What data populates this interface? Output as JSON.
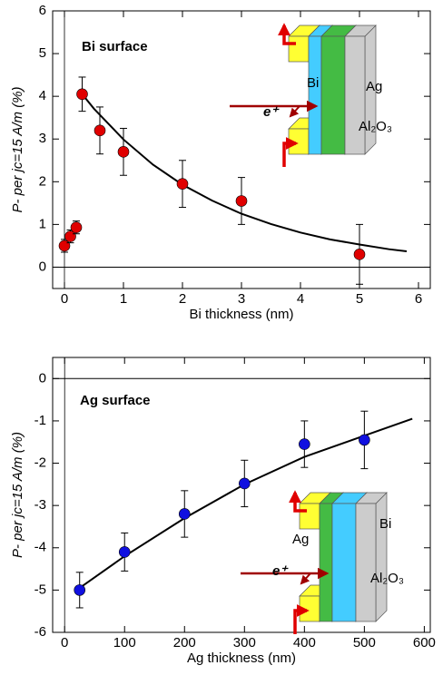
{
  "chart_data": [
    {
      "type": "scatter",
      "title": "Bi surface",
      "x_label": "Bi thickness  (nm)",
      "y_label": "P- per jc=15 A/m (%)",
      "annotations": [
        "Bi",
        "Ag",
        "Al₂O₃",
        "e⁺"
      ],
      "x": [
        0,
        0.1,
        0.2,
        0.3,
        0.6,
        1,
        2,
        3,
        5
      ],
      "series": [
        {
          "color": "#e00000",
          "values": [
            0.5,
            0.72,
            0.93,
            4.05,
            3.2,
            2.7,
            1.95,
            1.55,
            0.3
          ],
          "errors": [
            0.15,
            0.15,
            0.15,
            0.4,
            0.55,
            0.55,
            0.55,
            0.55,
            0.7
          ]
        }
      ],
      "fit": {
        "color": "#000000",
        "x": [
          0.3,
          0.5,
          1,
          1.5,
          2,
          2.5,
          3,
          3.5,
          4,
          4.5,
          5,
          5.5,
          5.8
        ],
        "values": [
          4.05,
          3.71,
          2.99,
          2.4,
          1.93,
          1.56,
          1.25,
          1.01,
          0.81,
          0.65,
          0.53,
          0.42,
          0.37
        ]
      },
      "xlim": [
        -0.2,
        6.2
      ],
      "ylim": [
        -0.5,
        6
      ],
      "xticks": [
        0,
        1,
        2,
        3,
        4,
        5,
        6
      ],
      "yticks": [
        0,
        1,
        2,
        3,
        4,
        5,
        6
      ]
    },
    {
      "type": "scatter",
      "title": "Ag surface",
      "x_label": "Ag thickness  (nm)",
      "y_label": "P- per jc=15 A/m (%)",
      "annotations": [
        "Ag",
        "Bi",
        "Al₂O₃",
        "e⁺"
      ],
      "x": [
        25,
        100,
        200,
        300,
        400,
        500
      ],
      "series": [
        {
          "color": "#1010e0",
          "values": [
            -5.0,
            -4.1,
            -3.2,
            -2.48,
            -1.55,
            -1.45
          ],
          "errors": [
            0.42,
            0.45,
            0.55,
            0.55,
            0.55,
            0.68
          ]
        }
      ],
      "fit": {
        "color": "#000000",
        "x": [
          25,
          100,
          200,
          300,
          400,
          500,
          580
        ],
        "values": [
          -4.95,
          -4.2,
          -3.3,
          -2.5,
          -1.85,
          -1.35,
          -0.95
        ]
      },
      "xlim": [
        -20,
        610
      ],
      "ylim": [
        -6,
        0.5
      ],
      "xticks": [
        0,
        100,
        200,
        300,
        400,
        500,
        600
      ],
      "yticks": [
        -6,
        -5,
        -4,
        -3,
        -2,
        -1,
        0
      ]
    }
  ]
}
